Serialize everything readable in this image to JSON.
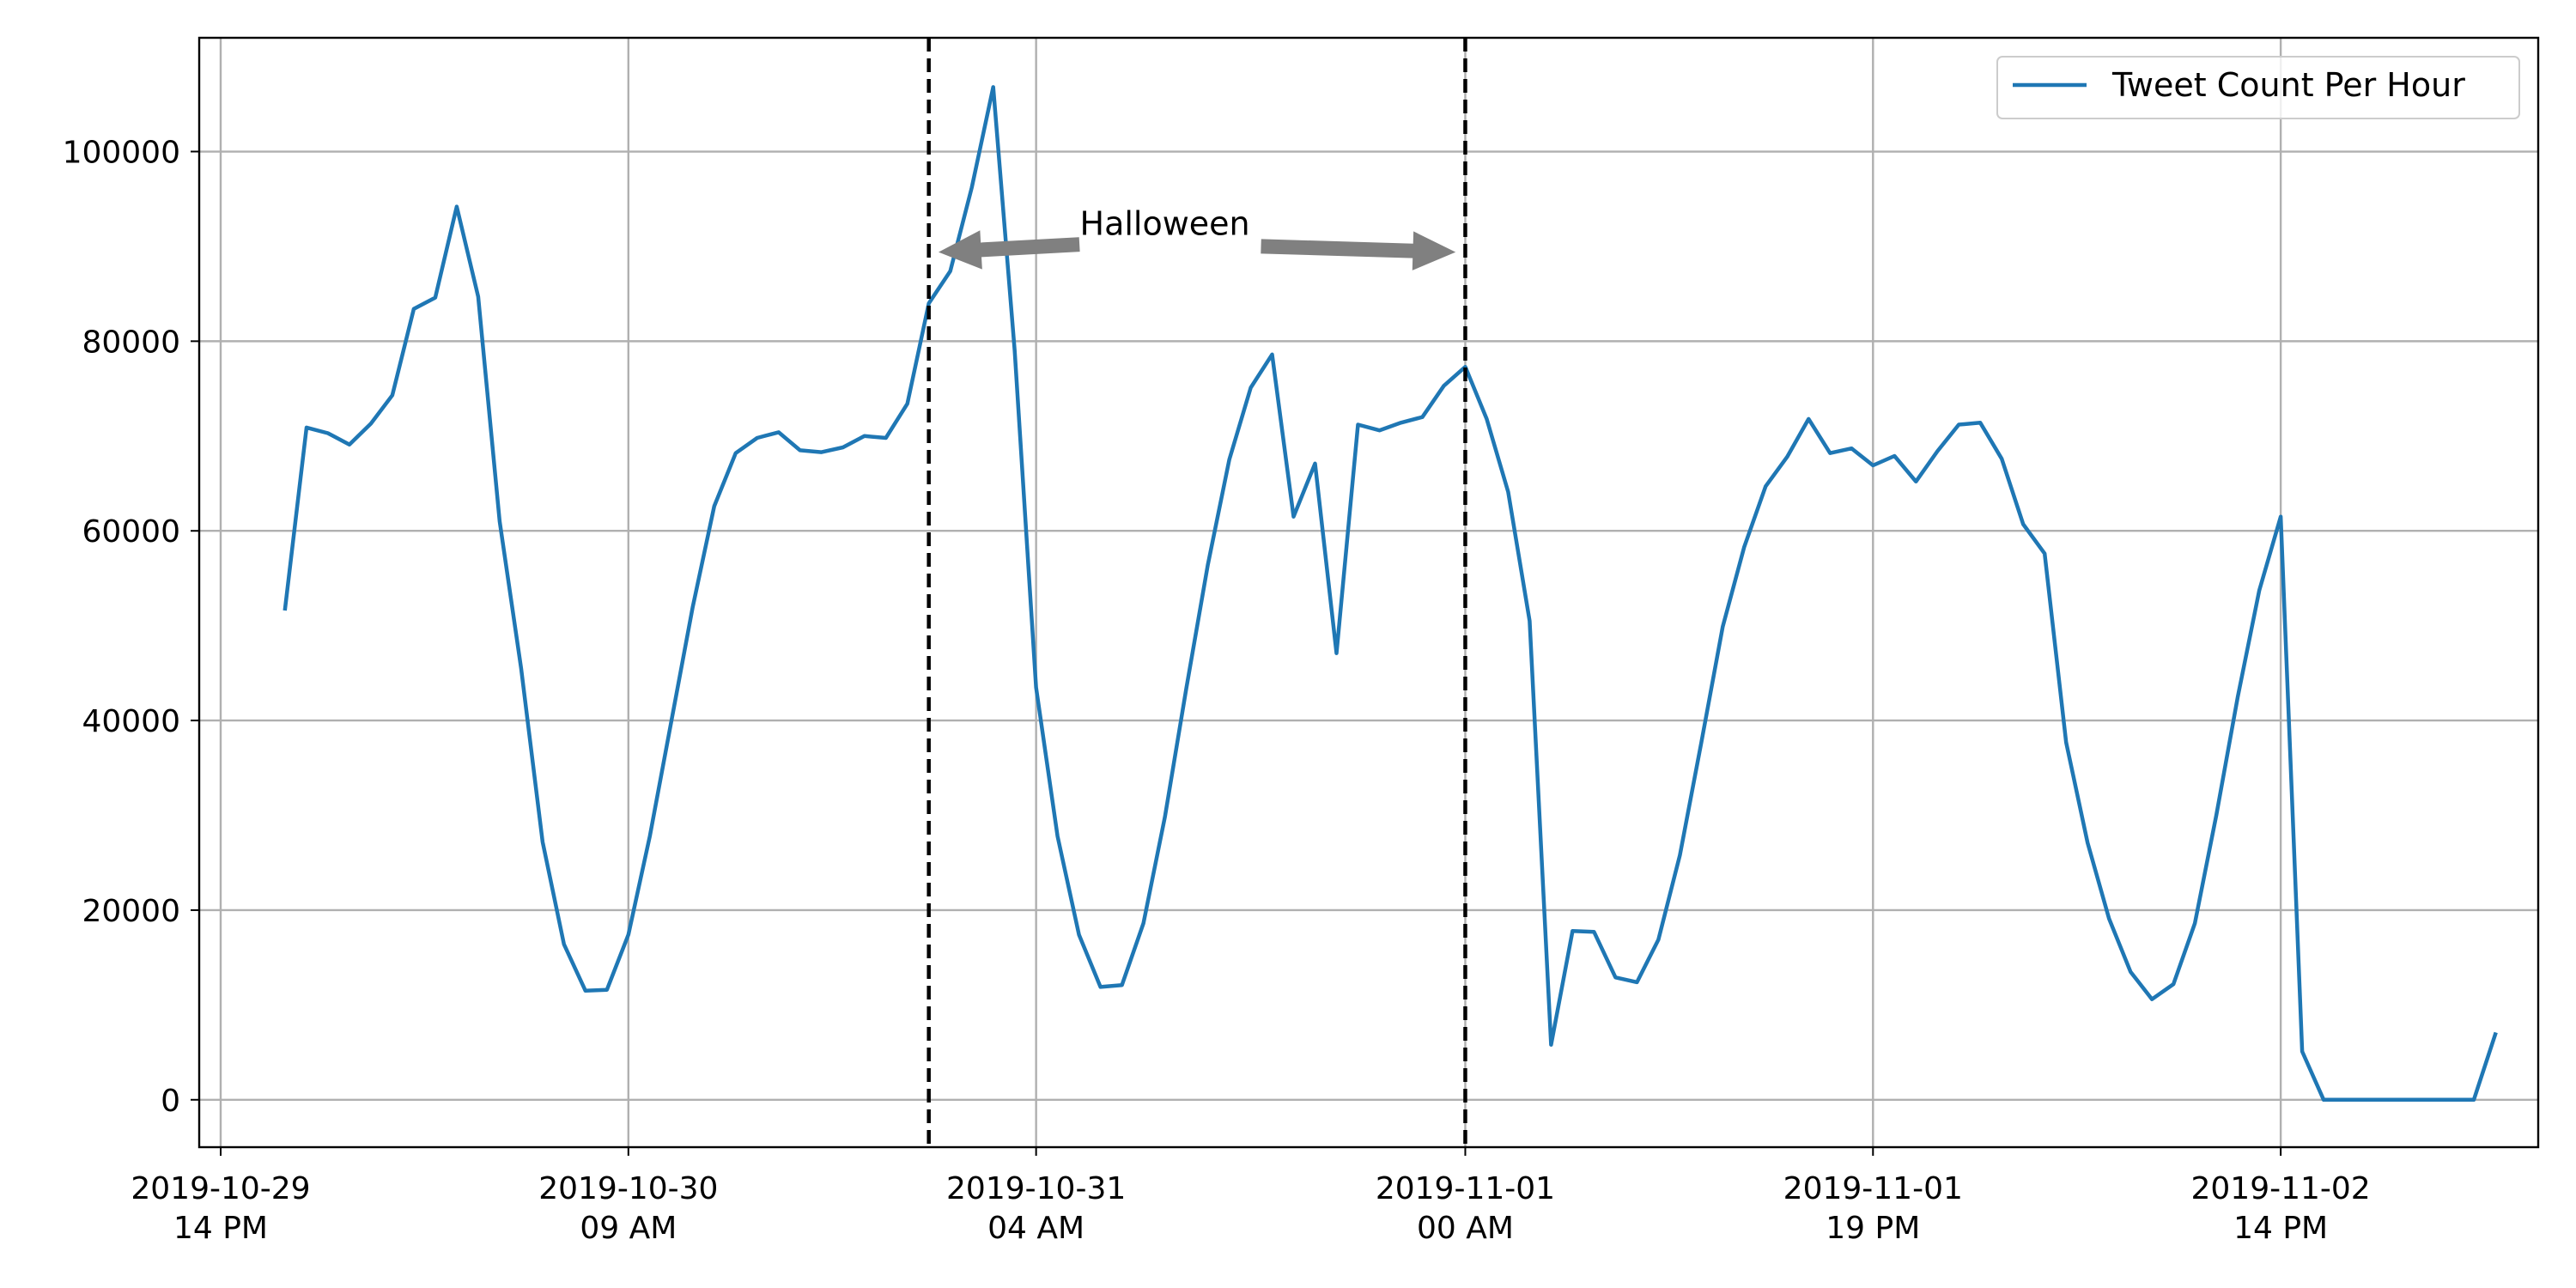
{
  "chart_data": {
    "type": "line",
    "title": "",
    "xlabel": "",
    "ylabel": "",
    "x_start": "2019-10-29 14:00",
    "x_unit": "hour",
    "xlim": [
      "2019-10-29 13:00",
      "2019-11-03 02:00"
    ],
    "ylim": [
      -5000,
      112000
    ],
    "grid": true,
    "legend_position": "top-right",
    "x_ticks": [
      {
        "x": "2019-10-29 14:00",
        "line1": "2019-10-29",
        "line2": "14 PM"
      },
      {
        "x": "2019-10-30 09:00",
        "line1": "2019-10-30",
        "line2": "09 AM"
      },
      {
        "x": "2019-10-31 04:00",
        "line1": "2019-10-31",
        "line2": "04 AM"
      },
      {
        "x": "2019-11-01 00:00",
        "line1": "2019-11-01",
        "line2": "00 AM"
      },
      {
        "x": "2019-11-01 19:00",
        "line1": "2019-11-01",
        "line2": "19 PM"
      },
      {
        "x": "2019-11-02 14:00",
        "line1": "2019-11-02",
        "line2": "14 PM"
      }
    ],
    "y_ticks": [
      0,
      20000,
      40000,
      60000,
      80000,
      100000
    ],
    "y_tick_labels": [
      "0",
      "20000",
      "40000",
      "60000",
      "80000",
      "100000"
    ],
    "series": [
      {
        "name": "Tweet Count Per Hour",
        "color": "#1f77b4",
        "points": [
          [
            "2019-10-29 17:00",
            51800
          ],
          [
            "2019-10-29 18:00",
            70900
          ],
          [
            "2019-10-29 19:00",
            70300
          ],
          [
            "2019-10-29 20:00",
            69100
          ],
          [
            "2019-10-29 21:00",
            71300
          ],
          [
            "2019-10-29 22:00",
            74300
          ],
          [
            "2019-10-29 23:00",
            83400
          ],
          [
            "2019-10-30 00:00",
            84600
          ],
          [
            "2019-10-30 01:00",
            94200
          ],
          [
            "2019-10-30 02:00",
            84700
          ],
          [
            "2019-10-30 03:00",
            61000
          ],
          [
            "2019-10-30 04:00",
            45500
          ],
          [
            "2019-10-30 05:00",
            27200
          ],
          [
            "2019-10-30 06:00",
            16400
          ],
          [
            "2019-10-30 07:00",
            11500
          ],
          [
            "2019-10-30 08:00",
            11600
          ],
          [
            "2019-10-30 09:00",
            17400
          ],
          [
            "2019-10-30 10:00",
            27800
          ],
          [
            "2019-10-30 11:00",
            39900
          ],
          [
            "2019-10-30 12:00",
            52000
          ],
          [
            "2019-10-30 13:00",
            62600
          ],
          [
            "2019-10-30 14:00",
            68200
          ],
          [
            "2019-10-30 15:00",
            69800
          ],
          [
            "2019-10-30 16:00",
            70400
          ],
          [
            "2019-10-30 17:00",
            68500
          ],
          [
            "2019-10-30 18:00",
            68300
          ],
          [
            "2019-10-30 19:00",
            68800
          ],
          [
            "2019-10-30 20:00",
            70000
          ],
          [
            "2019-10-30 21:00",
            69800
          ],
          [
            "2019-10-30 22:00",
            73400
          ],
          [
            "2019-10-30 23:00",
            84000
          ],
          [
            "2019-10-31 00:00",
            87400
          ],
          [
            "2019-10-31 01:00",
            96200
          ],
          [
            "2019-10-31 02:00",
            106800
          ],
          [
            "2019-10-31 03:00",
            79000
          ],
          [
            "2019-10-31 04:00",
            43500
          ],
          [
            "2019-10-31 05:00",
            27800
          ],
          [
            "2019-10-31 06:00",
            17400
          ],
          [
            "2019-10-31 07:00",
            11900
          ],
          [
            "2019-10-31 08:00",
            12100
          ],
          [
            "2019-10-31 09:00",
            18600
          ],
          [
            "2019-10-31 10:00",
            29800
          ],
          [
            "2019-10-31 11:00",
            43400
          ],
          [
            "2019-10-31 12:00",
            56400
          ],
          [
            "2019-10-31 13:00",
            67500
          ],
          [
            "2019-10-31 14:00",
            75100
          ],
          [
            "2019-10-31 15:00",
            78600
          ],
          [
            "2019-10-31 16:00",
            61500
          ],
          [
            "2019-10-31 17:00",
            67100
          ],
          [
            "2019-10-31 18:00",
            47100
          ],
          [
            "2019-10-31 19:00",
            71200
          ],
          [
            "2019-10-31 20:00",
            70600
          ],
          [
            "2019-10-31 21:00",
            71400
          ],
          [
            "2019-10-31 22:00",
            72000
          ],
          [
            "2019-10-31 23:00",
            75300
          ],
          [
            "2019-11-01 00:00",
            77300
          ],
          [
            "2019-11-01 01:00",
            71800
          ],
          [
            "2019-11-01 02:00",
            64100
          ],
          [
            "2019-11-01 03:00",
            50500
          ],
          [
            "2019-11-01 04:00",
            5800
          ],
          [
            "2019-11-01 05:00",
            17800
          ],
          [
            "2019-11-01 06:00",
            17700
          ],
          [
            "2019-11-01 07:00",
            12900
          ],
          [
            "2019-11-01 08:00",
            12400
          ],
          [
            "2019-11-01 09:00",
            16900
          ],
          [
            "2019-11-01 10:00",
            25800
          ],
          [
            "2019-11-01 11:00",
            37700
          ],
          [
            "2019-11-01 12:00",
            49900
          ],
          [
            "2019-11-01 13:00",
            58300
          ],
          [
            "2019-11-01 14:00",
            64700
          ],
          [
            "2019-11-01 15:00",
            67800
          ],
          [
            "2019-11-01 16:00",
            71800
          ],
          [
            "2019-11-01 17:00",
            68200
          ],
          [
            "2019-11-01 18:00",
            68700
          ],
          [
            "2019-11-01 19:00",
            66900
          ],
          [
            "2019-11-01 20:00",
            67900
          ],
          [
            "2019-11-01 21:00",
            65200
          ],
          [
            "2019-11-01 22:00",
            68400
          ],
          [
            "2019-11-01 23:00",
            71200
          ],
          [
            "2019-11-02 00:00",
            71400
          ],
          [
            "2019-11-02 01:00",
            67600
          ],
          [
            "2019-11-02 02:00",
            60700
          ],
          [
            "2019-11-02 03:00",
            57600
          ],
          [
            "2019-11-02 04:00",
            37700
          ],
          [
            "2019-11-02 05:00",
            27100
          ],
          [
            "2019-11-02 06:00",
            19100
          ],
          [
            "2019-11-02 07:00",
            13500
          ],
          [
            "2019-11-02 08:00",
            10600
          ],
          [
            "2019-11-02 09:00",
            12200
          ],
          [
            "2019-11-02 10:00",
            18600
          ],
          [
            "2019-11-02 11:00",
            30000
          ],
          [
            "2019-11-02 12:00",
            42500
          ],
          [
            "2019-11-02 13:00",
            53700
          ],
          [
            "2019-11-02 14:00",
            61500
          ],
          [
            "2019-11-02 15:00",
            5100
          ],
          [
            "2019-11-02 16:00",
            0
          ],
          [
            "2019-11-02 17:00",
            0
          ],
          [
            "2019-11-02 18:00",
            0
          ],
          [
            "2019-11-02 19:00",
            0
          ],
          [
            "2019-11-02 20:00",
            0
          ],
          [
            "2019-11-02 21:00",
            0
          ],
          [
            "2019-11-02 22:00",
            0
          ],
          [
            "2019-11-02 23:00",
            0
          ],
          [
            "2019-11-03 00:00",
            6900
          ]
        ]
      }
    ],
    "vlines": [
      {
        "x": "2019-10-30 23:00",
        "style": "dashed",
        "color": "#000000"
      },
      {
        "x": "2019-11-01 00:00",
        "style": "dashed",
        "color": "#000000"
      }
    ],
    "annotation": {
      "text": "Halloween",
      "color": "#808080",
      "arrows": [
        {
          "from": [
            "2019-10-31 06:00",
            90200
          ],
          "to": [
            "2019-10-30 23:30",
            89400
          ]
        },
        {
          "from": [
            "2019-10-31 14:30",
            90000
          ],
          "to": [
            "2019-10-31 23:30",
            89400
          ]
        }
      ],
      "label_at": [
        "2019-10-31 10:00",
        92300
      ]
    }
  }
}
